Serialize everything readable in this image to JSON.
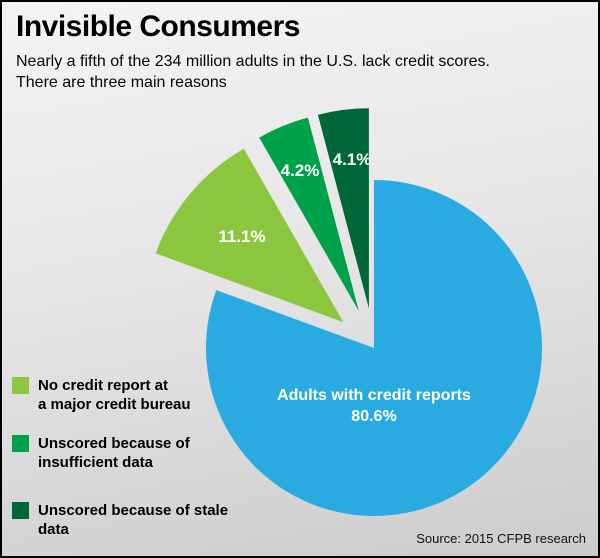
{
  "header": {
    "title": "Invisible Consumers",
    "subtitle_lines": [
      "Nearly a fifth of the 234 million adults in the U.S. lack credit scores.",
      "There are three main reasons"
    ]
  },
  "chart_data": {
    "type": "pie",
    "title": "Invisible Consumers",
    "value_unit": "%",
    "labels_inside": true,
    "legend_position": "bottom-left",
    "slices": [
      {
        "name": "Adults with credit reports",
        "value": 80.6,
        "label": "80.6%",
        "color": "#29ABE2",
        "exploded": false
      },
      {
        "name": "No credit report at a major credit bureau",
        "value": 11.1,
        "label": "11.1%",
        "color": "#8CC63F",
        "exploded": true
      },
      {
        "name": "Unscored because of insufficient data",
        "value": 4.2,
        "label": "4.2%",
        "color": "#00A14B",
        "exploded": true
      },
      {
        "name": "Unscored because of stale data",
        "value": 4.1,
        "label": "4.1%",
        "color": "#006838",
        "exploded": true
      }
    ]
  },
  "legend": {
    "items": [
      {
        "color": "#8CC63F",
        "lines": [
          "No credit report at",
          "a major credit bureau"
        ]
      },
      {
        "color": "#00A14B",
        "lines": [
          "Unscored because of",
          "insufficient data"
        ]
      },
      {
        "color": "#006838",
        "lines": [
          "Unscored because of stale",
          "data"
        ]
      }
    ]
  },
  "footer": {
    "source": "Source: 2015 CFPB research"
  }
}
